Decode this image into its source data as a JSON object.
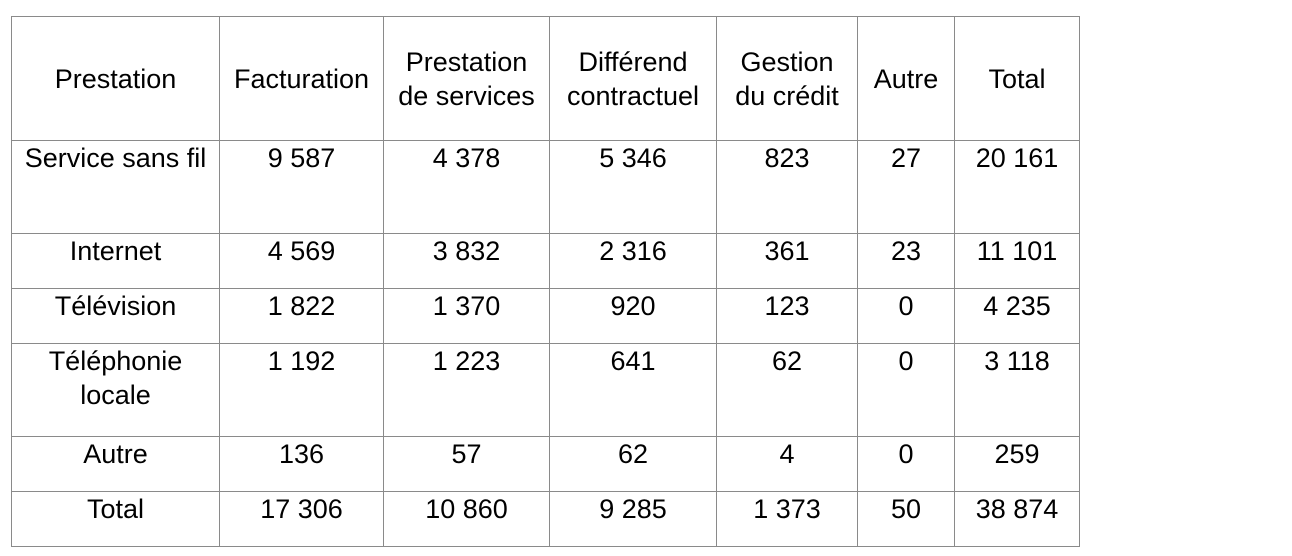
{
  "table": {
    "headers": [
      "Prestation",
      "Facturation",
      "Prestation de services",
      "Différend contractuel",
      "Gestion du crédit",
      "Autre",
      "Total"
    ],
    "rows": [
      {
        "label": "Service sans fil",
        "values": [
          "9 587",
          "4 378",
          "5 346",
          "823",
          "27",
          "20 161"
        ]
      },
      {
        "label": "Internet",
        "values": [
          "4 569",
          "3 832",
          "2 316",
          "361",
          "23",
          "11 101"
        ]
      },
      {
        "label": "Télévision",
        "values": [
          "1 822",
          "1 370",
          "920",
          "123",
          "0",
          "4 235"
        ]
      },
      {
        "label": "Téléphonie locale",
        "values": [
          "1 192",
          "1 223",
          "641",
          "62",
          "0",
          "3 118"
        ]
      },
      {
        "label": "Autre",
        "values": [
          "136",
          "57",
          "62",
          "4",
          "0",
          "259"
        ]
      },
      {
        "label": "Total",
        "values": [
          "17 306",
          "10 860",
          "9 285",
          "1 373",
          "50",
          "38 874"
        ]
      }
    ]
  },
  "colors": {
    "border": "#8a8a8a",
    "text": "#000000",
    "background": "#ffffff"
  }
}
